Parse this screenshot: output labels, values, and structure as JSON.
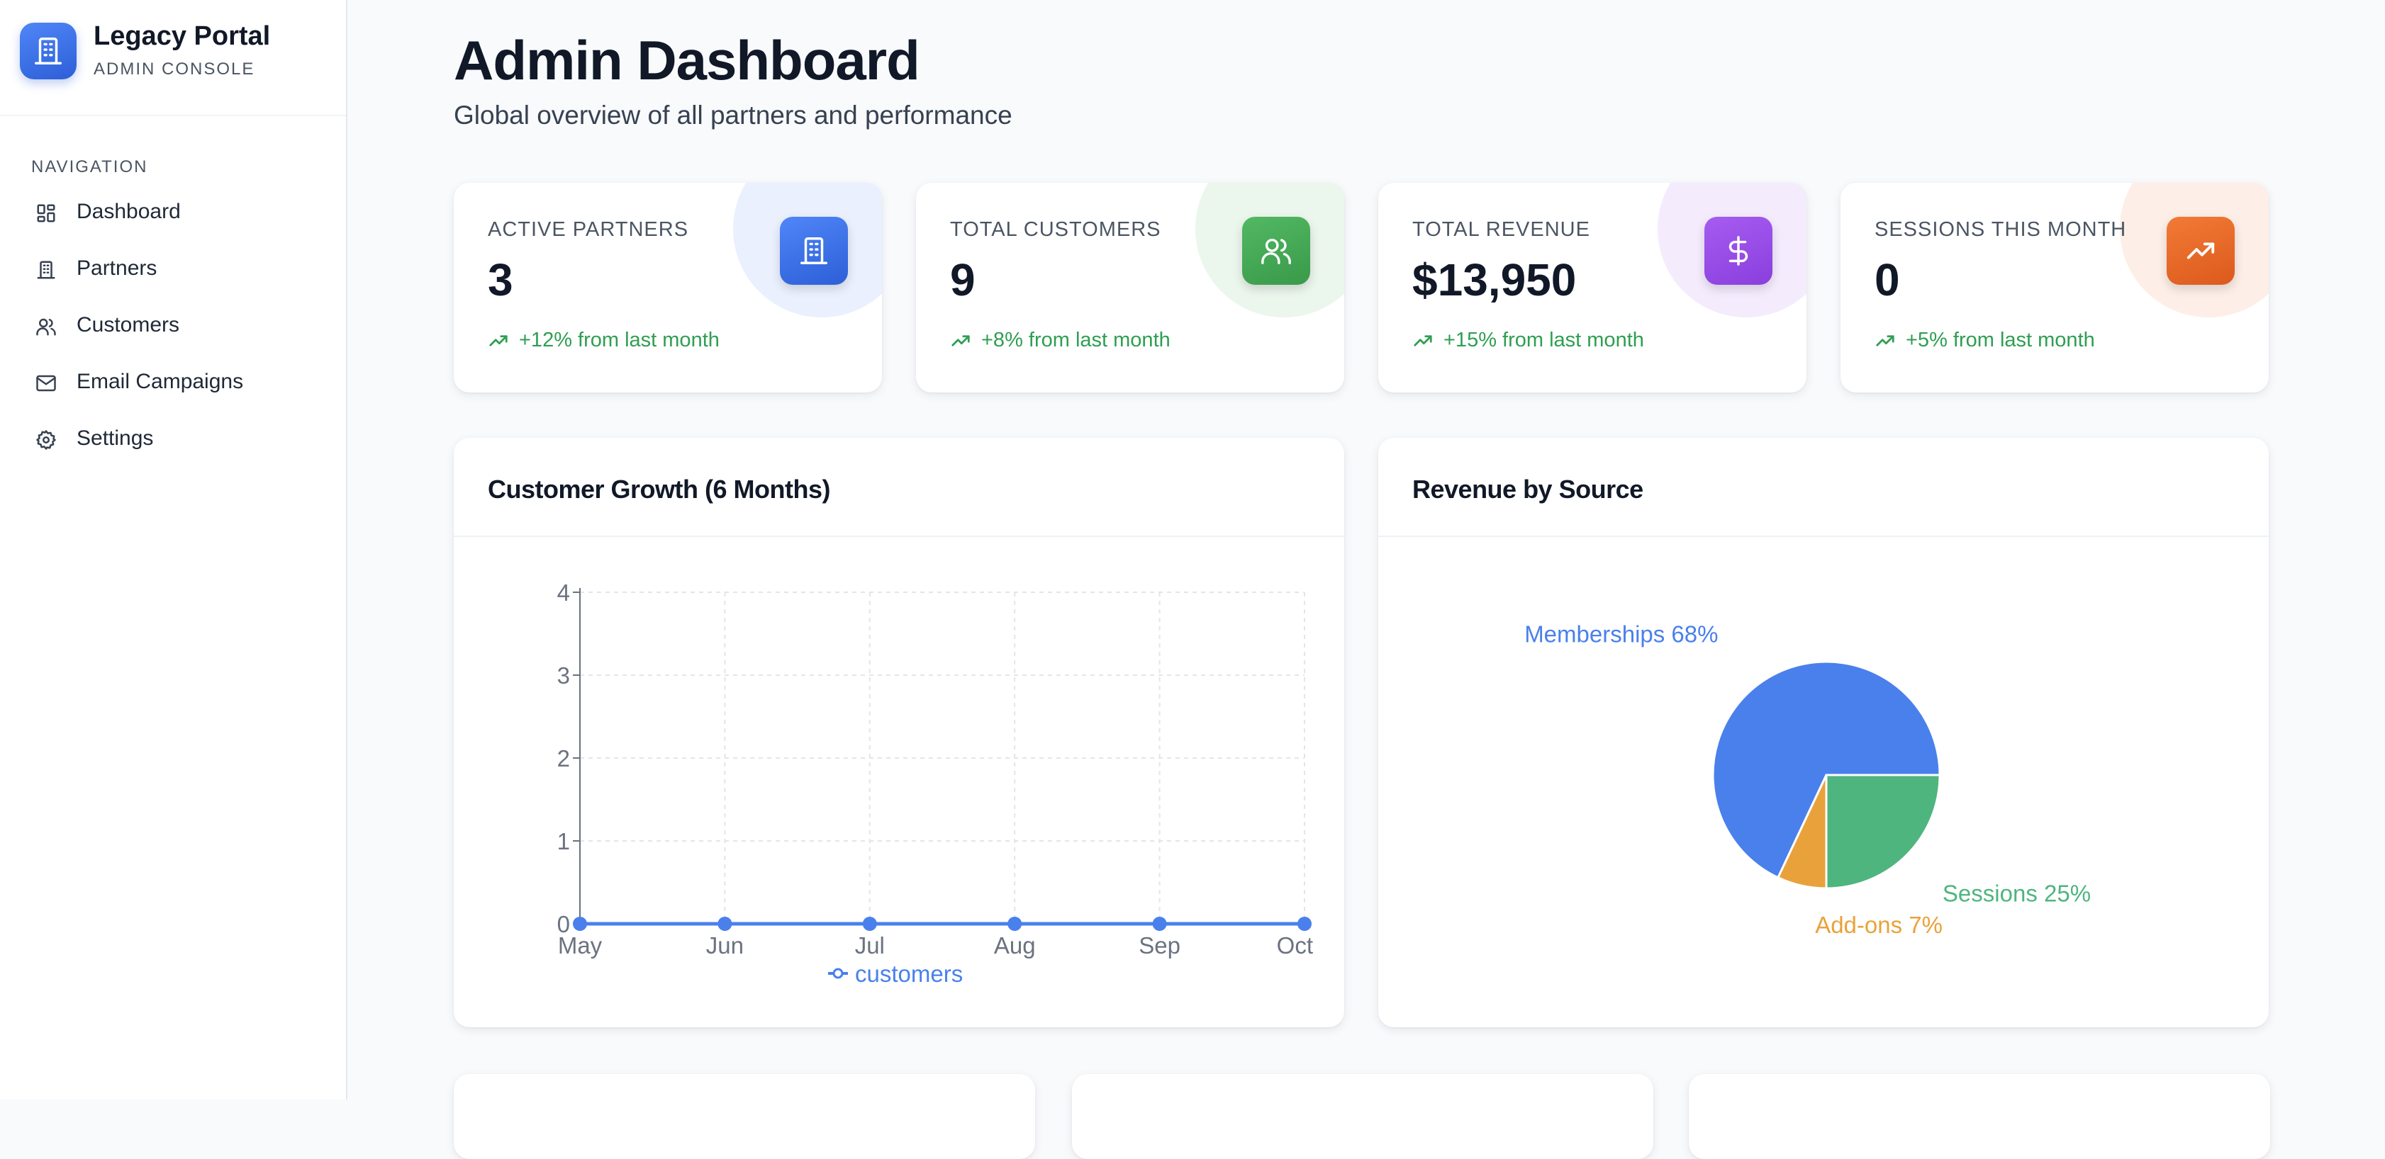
{
  "brand": {
    "title": "Legacy Portal",
    "subtitle": "ADMIN CONSOLE"
  },
  "nav": {
    "heading": "NAVIGATION",
    "items": [
      {
        "label": "Dashboard",
        "icon": "dashboard-grid-icon"
      },
      {
        "label": "Partners",
        "icon": "building-icon"
      },
      {
        "label": "Customers",
        "icon": "users-icon"
      },
      {
        "label": "Email Campaigns",
        "icon": "mail-icon"
      },
      {
        "label": "Settings",
        "icon": "gear-icon"
      }
    ]
  },
  "header": {
    "title": "Admin Dashboard",
    "subtitle": "Global overview of all partners and performance"
  },
  "stats": [
    {
      "label": "ACTIVE PARTNERS",
      "value": "3",
      "trend": "+12% from last month",
      "icon": "building-icon",
      "color": "#3b6fe0"
    },
    {
      "label": "TOTAL CUSTOMERS",
      "value": "9",
      "trend": "+8% from last month",
      "icon": "users-icon",
      "color": "#43a554"
    },
    {
      "label": "TOTAL REVENUE",
      "value": "$13,950",
      "trend": "+15% from last month",
      "icon": "dollar-icon",
      "color": "#9b4ae8"
    },
    {
      "label": "SESSIONS THIS MONTH",
      "value": "0",
      "trend": "+5% from last month",
      "icon": "trending-up-icon",
      "color": "#ea6a26"
    }
  ],
  "colors": {
    "trend_positive": "#2f9e52",
    "line": "#4a80ec",
    "pie_blue": "#4a80ec",
    "pie_green": "#4eb57f",
    "pie_orange": "#e9a23b"
  },
  "panels": {
    "growth_title": "Customer Growth (6 Months)",
    "revenue_title": "Revenue by Source"
  },
  "chart_data": [
    {
      "type": "line",
      "title": "Customer Growth (6 Months)",
      "x": [
        "May",
        "Jun",
        "Jul",
        "Aug",
        "Sep",
        "Oct"
      ],
      "series": [
        {
          "name": "customers",
          "values": [
            0,
            0,
            0,
            0,
            0,
            0
          ]
        }
      ],
      "yticks": [
        "0",
        "1",
        "2",
        "3",
        "4"
      ],
      "ylim": [
        0,
        4
      ],
      "grid": true,
      "legend": "bottom"
    },
    {
      "type": "pie",
      "title": "Revenue by Source",
      "slices": [
        {
          "label": "Memberships 68%",
          "value": 68,
          "color": "#4a80ec"
        },
        {
          "label": "Sessions 25%",
          "value": 25,
          "color": "#4eb57f"
        },
        {
          "label": "Add-ons 7%",
          "value": 7,
          "color": "#e9a23b"
        }
      ]
    }
  ]
}
